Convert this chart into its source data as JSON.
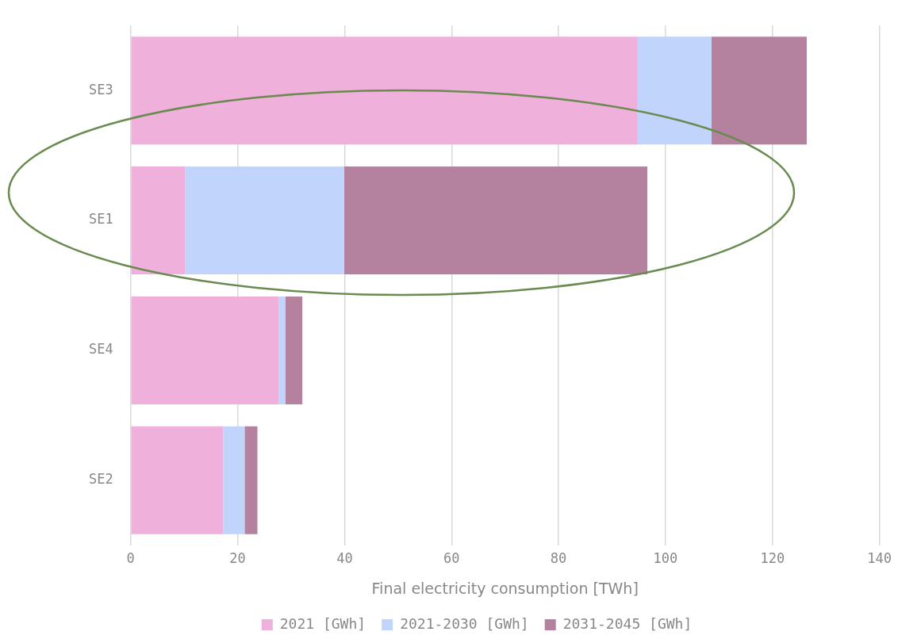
{
  "chart_data": {
    "type": "bar",
    "orientation": "horizontal",
    "stacked": true,
    "xlabel": "Final electricity consumption [TWh]",
    "categories": [
      "SE3",
      "SE1",
      "SE4",
      "SE2"
    ],
    "series": [
      {
        "name": "2021 [GWh]",
        "color": "#f0b0dc",
        "values": [
          94.8,
          10.2,
          27.7,
          17.3
        ]
      },
      {
        "name": "2021-2030 [GWh]",
        "color": "#c0d4fc",
        "values": [
          13.8,
          29.7,
          1.2,
          4.0
        ]
      },
      {
        "name": "2031-2045 [GWh]",
        "color": "#b4829e",
        "values": [
          17.8,
          56.7,
          3.2,
          2.4
        ]
      }
    ],
    "xlim": [
      0,
      140
    ],
    "xticks": [
      0,
      20,
      40,
      60,
      80,
      100,
      120,
      140
    ],
    "grid": "x",
    "legend": "bottom"
  }
}
